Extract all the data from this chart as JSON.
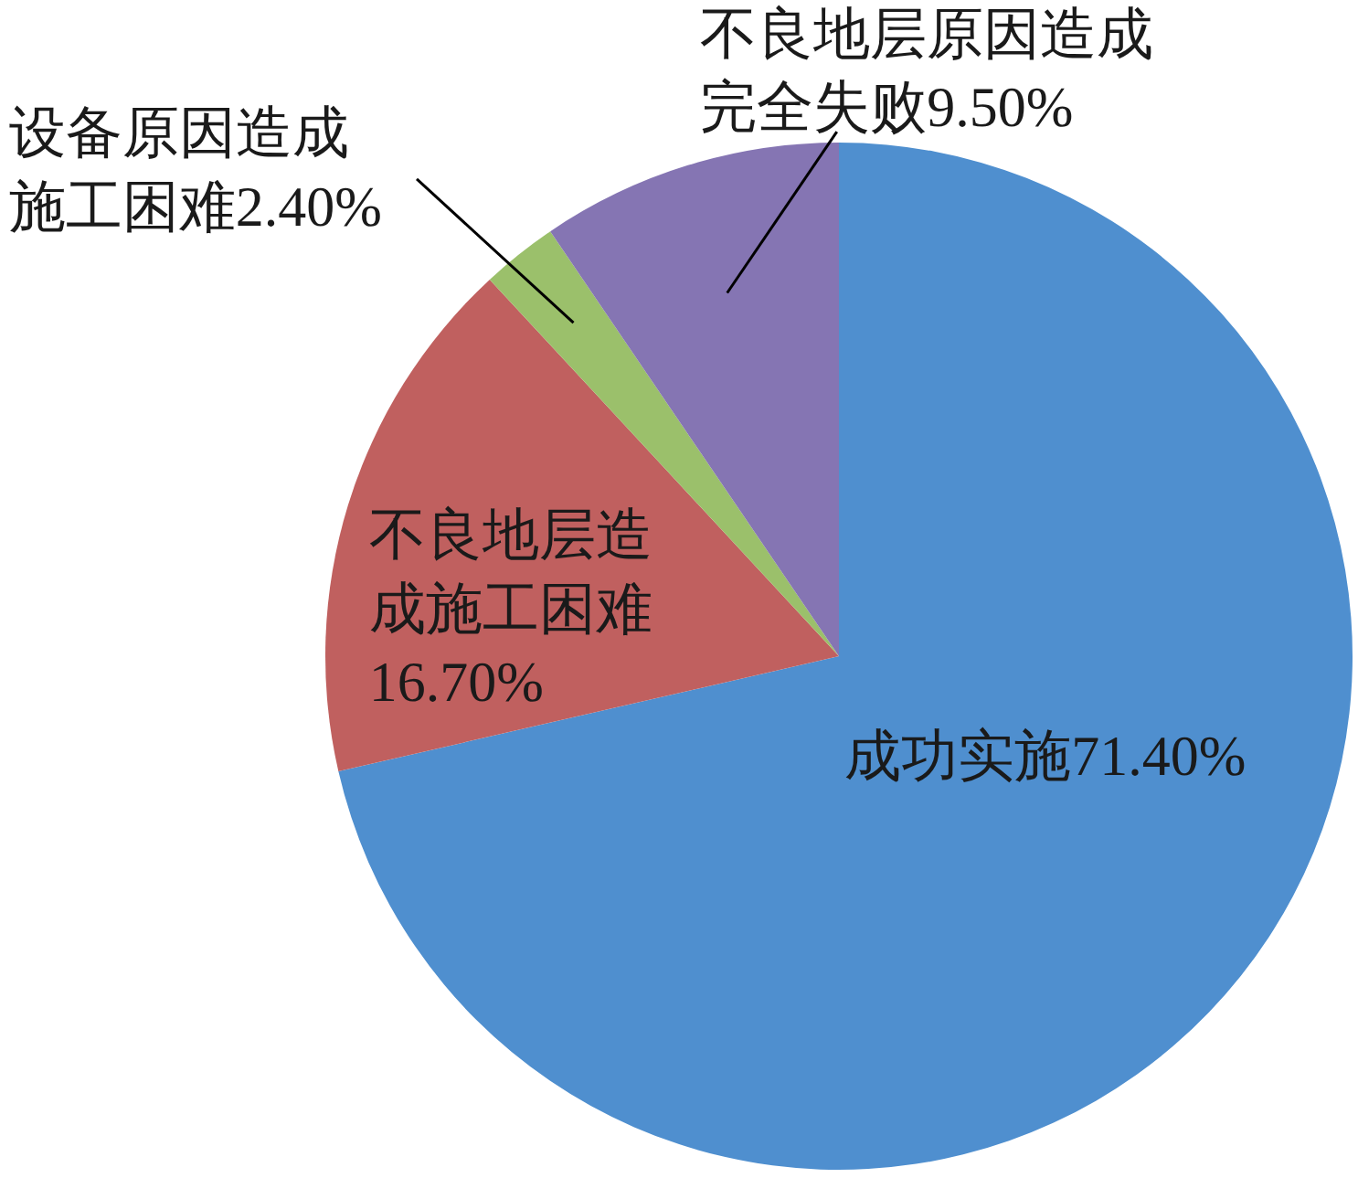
{
  "chart_data": {
    "type": "pie",
    "categories": [
      "成功实施",
      "不良地层造成施工困难",
      "设备原因造成施工困难",
      "不良地层原因造成完全失败"
    ],
    "values": [
      71.4,
      16.7,
      2.4,
      9.5
    ],
    "colors": [
      "#4f8fcf",
      "#c0605f",
      "#9bc06b",
      "#8575b3"
    ],
    "value_labels": [
      "71.40%",
      "16.70%",
      "2.40%",
      "9.50%"
    ]
  }
}
